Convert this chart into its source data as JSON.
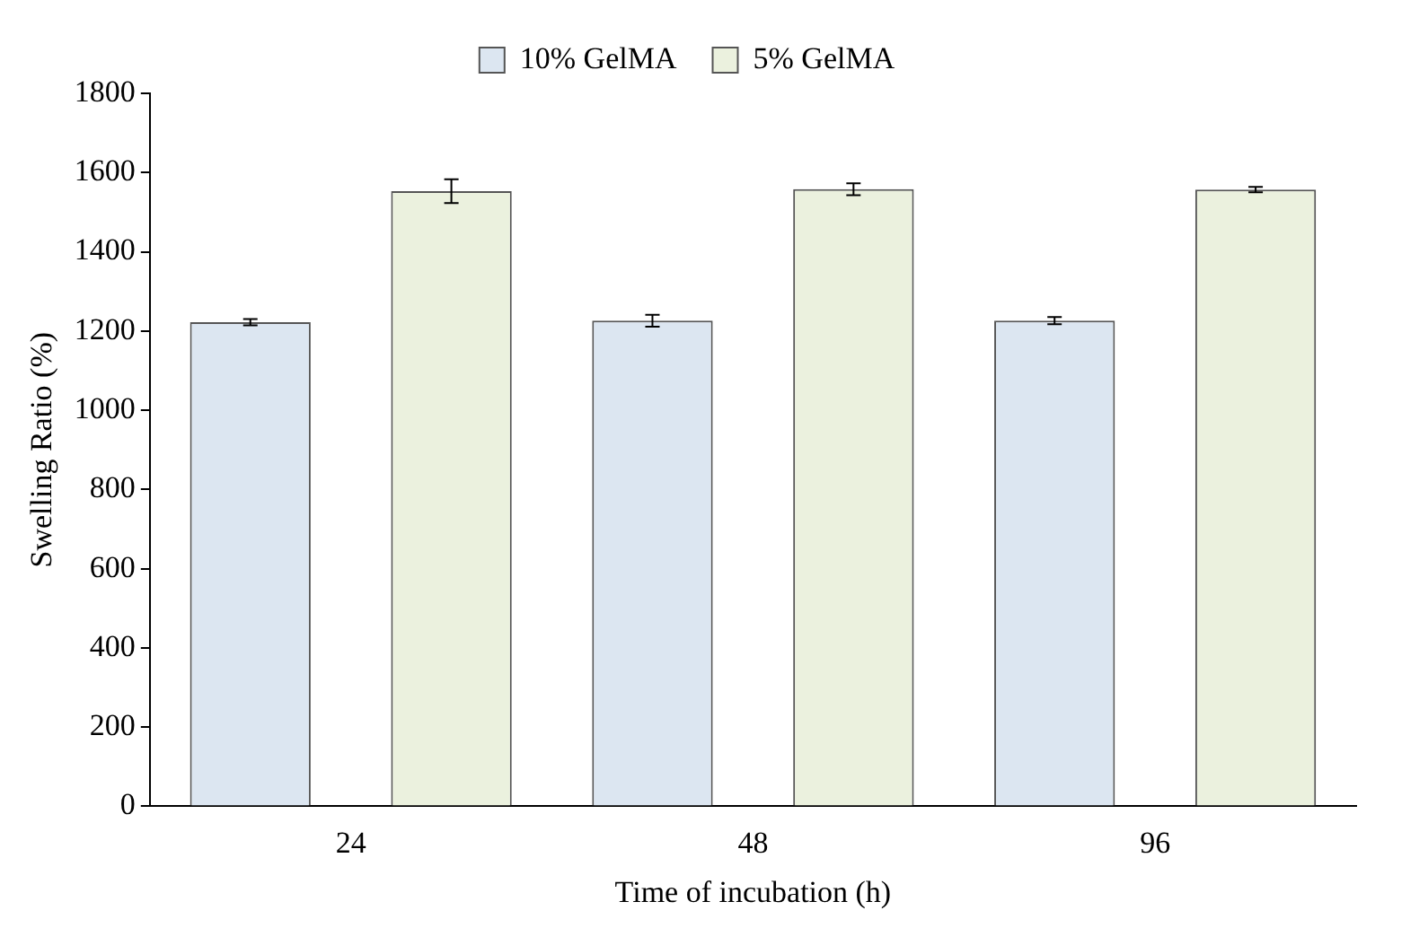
{
  "chart_data": {
    "type": "bar",
    "xlabel": "Time of incubation (h)",
    "ylabel": "Swelling Ratio (%)",
    "categories": [
      "24",
      "48",
      "96"
    ],
    "series": [
      {
        "name": "10% GelMA",
        "color": "#dce6f1",
        "values": [
          1222,
          1226,
          1226
        ],
        "errors": [
          8,
          15,
          9
        ]
      },
      {
        "name": "5% GelMA",
        "color": "#ebf1de",
        "values": [
          1553,
          1558,
          1557
        ],
        "errors": [
          30,
          15,
          7
        ]
      }
    ],
    "ylim": [
      0,
      1800
    ],
    "yticks": [
      0,
      200,
      400,
      600,
      800,
      1000,
      1200,
      1400,
      1600,
      1800
    ],
    "grid": false,
    "legend": "top"
  }
}
